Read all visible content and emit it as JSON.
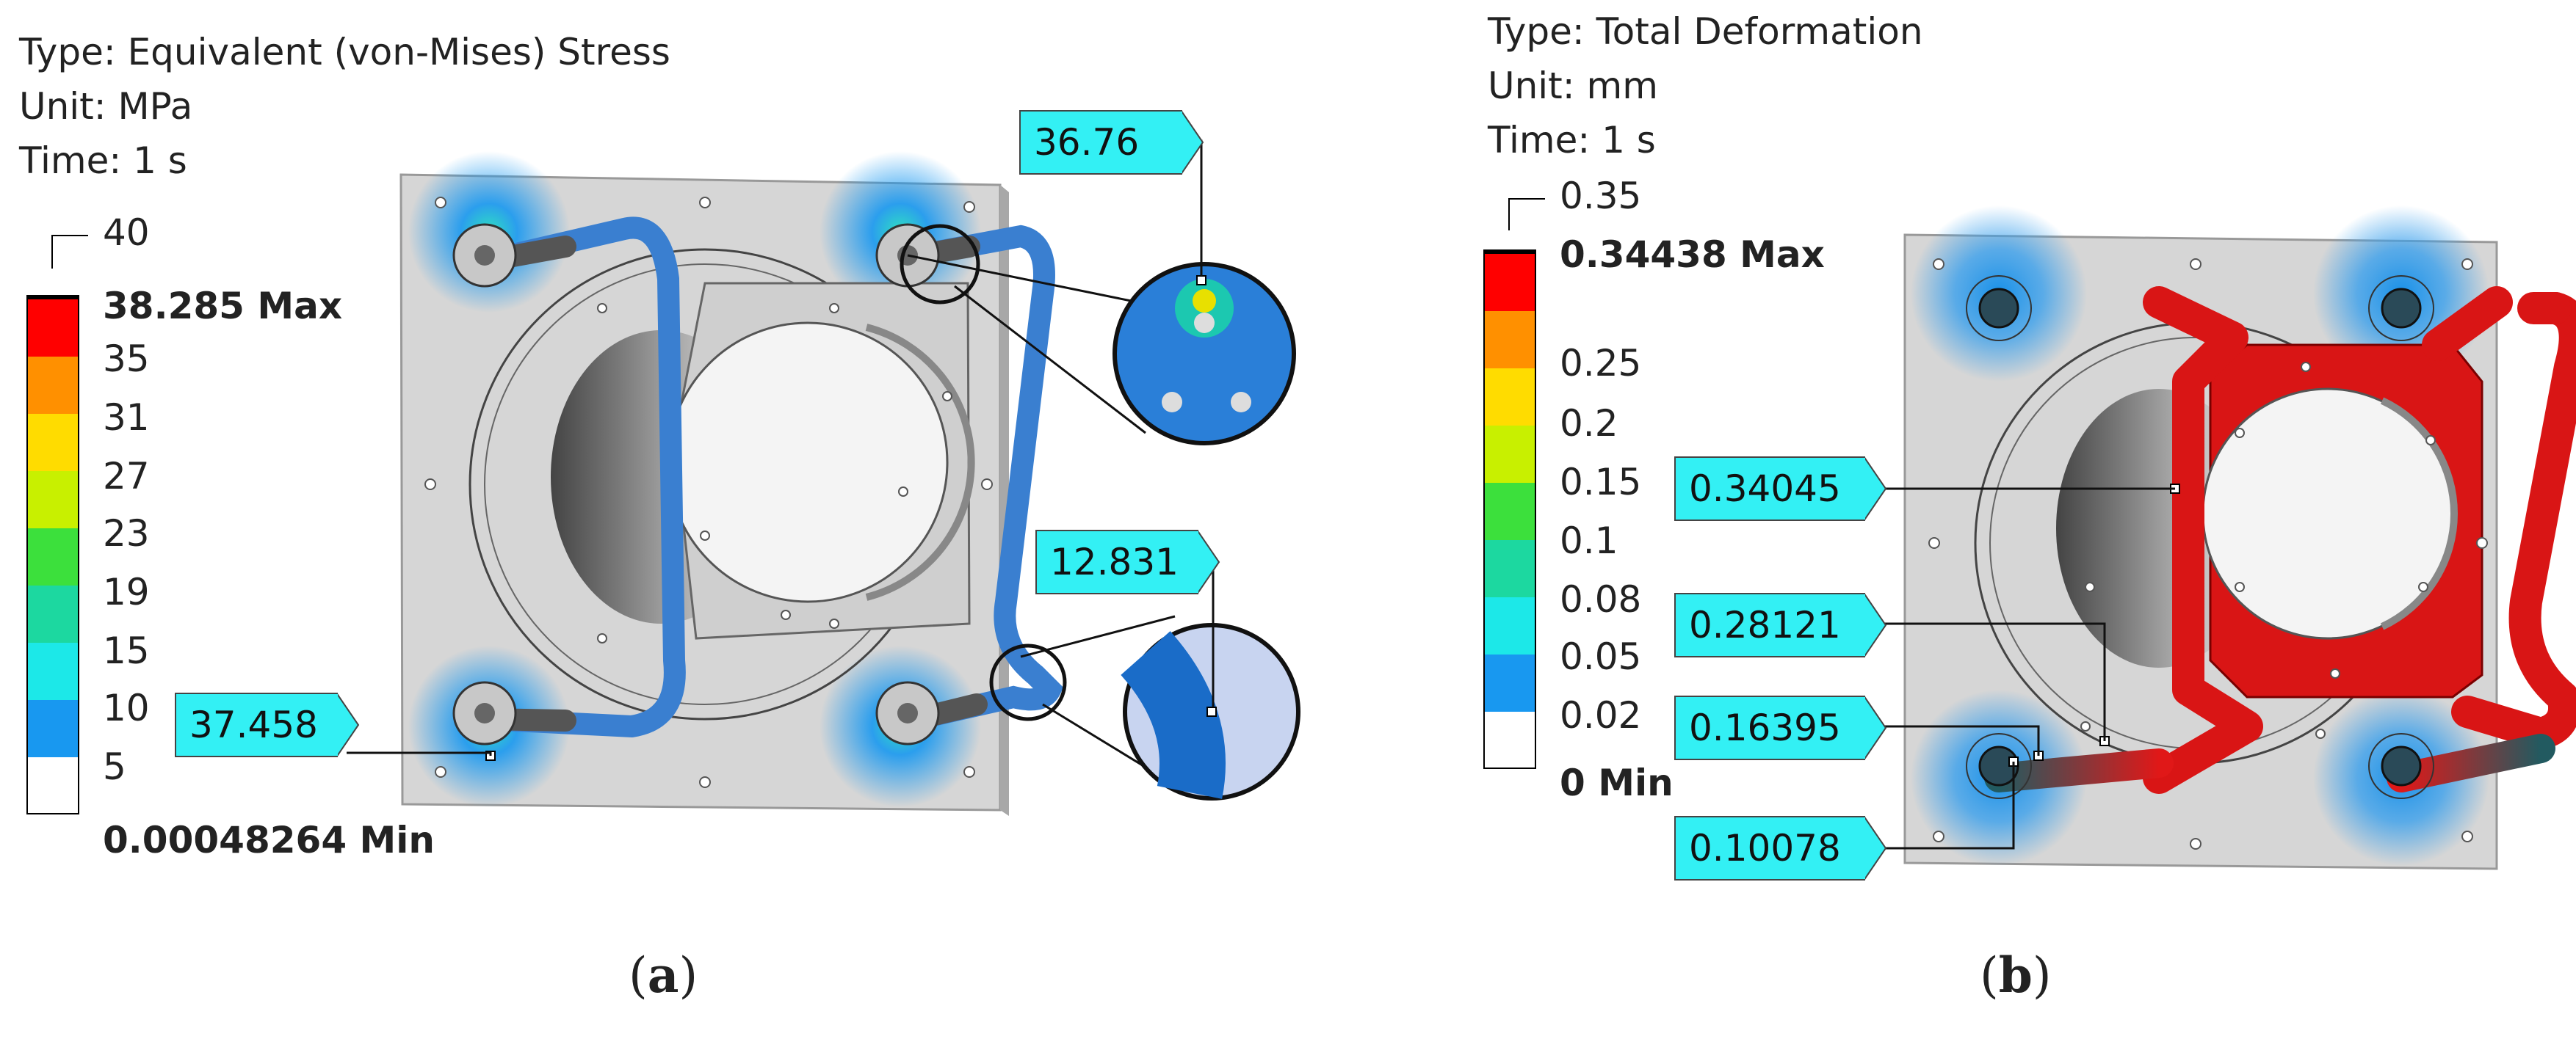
{
  "panel_a": {
    "info": {
      "type": "Type: Equivalent (von-Mises) Stress",
      "unit": "Unit: MPa",
      "time": "Time: 1 s"
    },
    "legend": {
      "top": "40",
      "max": "38.285 Max",
      "ticks": [
        "35",
        "31",
        "27",
        "23",
        "19",
        "15",
        "10",
        "5"
      ],
      "min": "0.00048264 Min",
      "colors": [
        "#ff0000",
        "#ff9000",
        "#ffdc00",
        "#c8f000",
        "#3ce03c",
        "#1cd8a0",
        "#1ce8e8",
        "#1898f0",
        "#ffffff"
      ]
    },
    "probes": {
      "p1": "36.76",
      "p2": "12.831",
      "p3": "37.458"
    },
    "caption": "a"
  },
  "panel_b": {
    "info": {
      "type": "Type: Total Deformation",
      "unit": "Unit: mm",
      "time": "Time: 1 s"
    },
    "legend": {
      "top": "0.35",
      "max": "0.34438 Max",
      "ticks": [
        "0.25",
        "0.2",
        "0.15",
        "0.1",
        "0.08",
        "0.05",
        "0.02"
      ],
      "min": "0 Min",
      "colors": [
        "#ff0000",
        "#ff9000",
        "#ffdc00",
        "#c8f000",
        "#3ce03c",
        "#1cd8a0",
        "#1ce8e8",
        "#1898f0",
        "#ffffff"
      ]
    },
    "probes": {
      "p1": "0.34045",
      "p2": "0.28121",
      "p3": "0.16395",
      "p4": "0.10078"
    },
    "caption": "b"
  }
}
